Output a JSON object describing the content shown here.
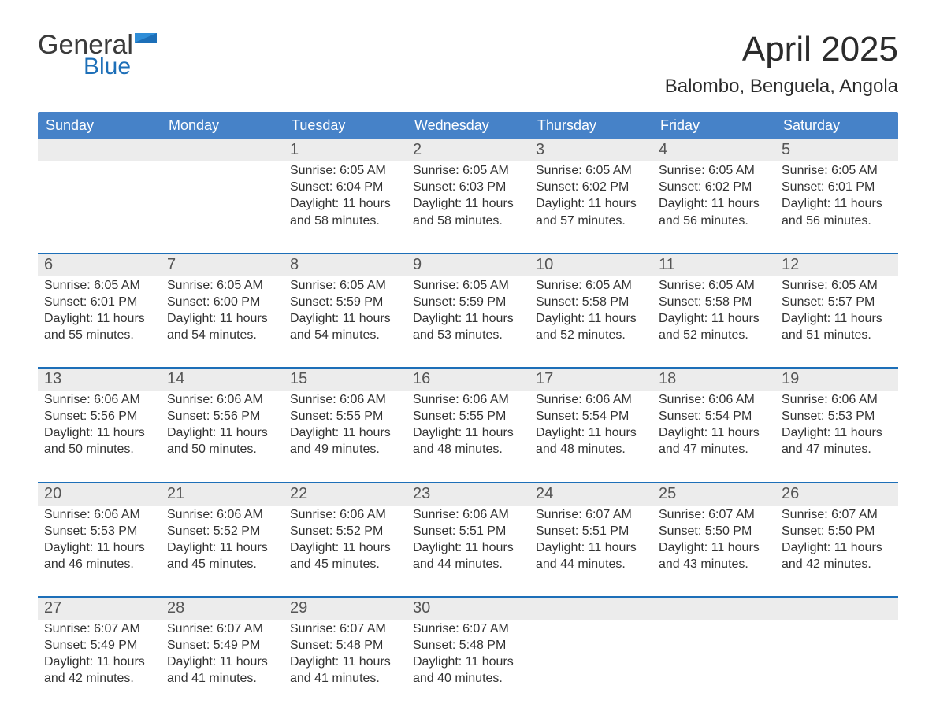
{
  "brand": {
    "general": "General",
    "blue": "Blue"
  },
  "colors": {
    "header_blue": "#4682c8",
    "accent_blue": "#1d6fb8",
    "daynum_bg": "#ececec",
    "text": "#333333",
    "page_bg": "#ffffff"
  },
  "title": {
    "month": "April 2025",
    "location": "Balombo, Benguela, Angola"
  },
  "day_headers": [
    "Sunday",
    "Monday",
    "Tuesday",
    "Wednesday",
    "Thursday",
    "Friday",
    "Saturday"
  ],
  "weeks": [
    [
      {
        "day": "",
        "sunrise": "",
        "sunset": "",
        "daylight1": "",
        "daylight2": ""
      },
      {
        "day": "",
        "sunrise": "",
        "sunset": "",
        "daylight1": "",
        "daylight2": ""
      },
      {
        "day": "1",
        "sunrise": "Sunrise: 6:05 AM",
        "sunset": "Sunset: 6:04 PM",
        "daylight1": "Daylight: 11 hours",
        "daylight2": "and 58 minutes."
      },
      {
        "day": "2",
        "sunrise": "Sunrise: 6:05 AM",
        "sunset": "Sunset: 6:03 PM",
        "daylight1": "Daylight: 11 hours",
        "daylight2": "and 58 minutes."
      },
      {
        "day": "3",
        "sunrise": "Sunrise: 6:05 AM",
        "sunset": "Sunset: 6:02 PM",
        "daylight1": "Daylight: 11 hours",
        "daylight2": "and 57 minutes."
      },
      {
        "day": "4",
        "sunrise": "Sunrise: 6:05 AM",
        "sunset": "Sunset: 6:02 PM",
        "daylight1": "Daylight: 11 hours",
        "daylight2": "and 56 minutes."
      },
      {
        "day": "5",
        "sunrise": "Sunrise: 6:05 AM",
        "sunset": "Sunset: 6:01 PM",
        "daylight1": "Daylight: 11 hours",
        "daylight2": "and 56 minutes."
      }
    ],
    [
      {
        "day": "6",
        "sunrise": "Sunrise: 6:05 AM",
        "sunset": "Sunset: 6:01 PM",
        "daylight1": "Daylight: 11 hours",
        "daylight2": "and 55 minutes."
      },
      {
        "day": "7",
        "sunrise": "Sunrise: 6:05 AM",
        "sunset": "Sunset: 6:00 PM",
        "daylight1": "Daylight: 11 hours",
        "daylight2": "and 54 minutes."
      },
      {
        "day": "8",
        "sunrise": "Sunrise: 6:05 AM",
        "sunset": "Sunset: 5:59 PM",
        "daylight1": "Daylight: 11 hours",
        "daylight2": "and 54 minutes."
      },
      {
        "day": "9",
        "sunrise": "Sunrise: 6:05 AM",
        "sunset": "Sunset: 5:59 PM",
        "daylight1": "Daylight: 11 hours",
        "daylight2": "and 53 minutes."
      },
      {
        "day": "10",
        "sunrise": "Sunrise: 6:05 AM",
        "sunset": "Sunset: 5:58 PM",
        "daylight1": "Daylight: 11 hours",
        "daylight2": "and 52 minutes."
      },
      {
        "day": "11",
        "sunrise": "Sunrise: 6:05 AM",
        "sunset": "Sunset: 5:58 PM",
        "daylight1": "Daylight: 11 hours",
        "daylight2": "and 52 minutes."
      },
      {
        "day": "12",
        "sunrise": "Sunrise: 6:05 AM",
        "sunset": "Sunset: 5:57 PM",
        "daylight1": "Daylight: 11 hours",
        "daylight2": "and 51 minutes."
      }
    ],
    [
      {
        "day": "13",
        "sunrise": "Sunrise: 6:06 AM",
        "sunset": "Sunset: 5:56 PM",
        "daylight1": "Daylight: 11 hours",
        "daylight2": "and 50 minutes."
      },
      {
        "day": "14",
        "sunrise": "Sunrise: 6:06 AM",
        "sunset": "Sunset: 5:56 PM",
        "daylight1": "Daylight: 11 hours",
        "daylight2": "and 50 minutes."
      },
      {
        "day": "15",
        "sunrise": "Sunrise: 6:06 AM",
        "sunset": "Sunset: 5:55 PM",
        "daylight1": "Daylight: 11 hours",
        "daylight2": "and 49 minutes."
      },
      {
        "day": "16",
        "sunrise": "Sunrise: 6:06 AM",
        "sunset": "Sunset: 5:55 PM",
        "daylight1": "Daylight: 11 hours",
        "daylight2": "and 48 minutes."
      },
      {
        "day": "17",
        "sunrise": "Sunrise: 6:06 AM",
        "sunset": "Sunset: 5:54 PM",
        "daylight1": "Daylight: 11 hours",
        "daylight2": "and 48 minutes."
      },
      {
        "day": "18",
        "sunrise": "Sunrise: 6:06 AM",
        "sunset": "Sunset: 5:54 PM",
        "daylight1": "Daylight: 11 hours",
        "daylight2": "and 47 minutes."
      },
      {
        "day": "19",
        "sunrise": "Sunrise: 6:06 AM",
        "sunset": "Sunset: 5:53 PM",
        "daylight1": "Daylight: 11 hours",
        "daylight2": "and 47 minutes."
      }
    ],
    [
      {
        "day": "20",
        "sunrise": "Sunrise: 6:06 AM",
        "sunset": "Sunset: 5:53 PM",
        "daylight1": "Daylight: 11 hours",
        "daylight2": "and 46 minutes."
      },
      {
        "day": "21",
        "sunrise": "Sunrise: 6:06 AM",
        "sunset": "Sunset: 5:52 PM",
        "daylight1": "Daylight: 11 hours",
        "daylight2": "and 45 minutes."
      },
      {
        "day": "22",
        "sunrise": "Sunrise: 6:06 AM",
        "sunset": "Sunset: 5:52 PM",
        "daylight1": "Daylight: 11 hours",
        "daylight2": "and 45 minutes."
      },
      {
        "day": "23",
        "sunrise": "Sunrise: 6:06 AM",
        "sunset": "Sunset: 5:51 PM",
        "daylight1": "Daylight: 11 hours",
        "daylight2": "and 44 minutes."
      },
      {
        "day": "24",
        "sunrise": "Sunrise: 6:07 AM",
        "sunset": "Sunset: 5:51 PM",
        "daylight1": "Daylight: 11 hours",
        "daylight2": "and 44 minutes."
      },
      {
        "day": "25",
        "sunrise": "Sunrise: 6:07 AM",
        "sunset": "Sunset: 5:50 PM",
        "daylight1": "Daylight: 11 hours",
        "daylight2": "and 43 minutes."
      },
      {
        "day": "26",
        "sunrise": "Sunrise: 6:07 AM",
        "sunset": "Sunset: 5:50 PM",
        "daylight1": "Daylight: 11 hours",
        "daylight2": "and 42 minutes."
      }
    ],
    [
      {
        "day": "27",
        "sunrise": "Sunrise: 6:07 AM",
        "sunset": "Sunset: 5:49 PM",
        "daylight1": "Daylight: 11 hours",
        "daylight2": "and 42 minutes."
      },
      {
        "day": "28",
        "sunrise": "Sunrise: 6:07 AM",
        "sunset": "Sunset: 5:49 PM",
        "daylight1": "Daylight: 11 hours",
        "daylight2": "and 41 minutes."
      },
      {
        "day": "29",
        "sunrise": "Sunrise: 6:07 AM",
        "sunset": "Sunset: 5:48 PM",
        "daylight1": "Daylight: 11 hours",
        "daylight2": "and 41 minutes."
      },
      {
        "day": "30",
        "sunrise": "Sunrise: 6:07 AM",
        "sunset": "Sunset: 5:48 PM",
        "daylight1": "Daylight: 11 hours",
        "daylight2": "and 40 minutes."
      },
      {
        "day": "",
        "sunrise": "",
        "sunset": "",
        "daylight1": "",
        "daylight2": ""
      },
      {
        "day": "",
        "sunrise": "",
        "sunset": "",
        "daylight1": "",
        "daylight2": ""
      },
      {
        "day": "",
        "sunrise": "",
        "sunset": "",
        "daylight1": "",
        "daylight2": ""
      }
    ]
  ]
}
